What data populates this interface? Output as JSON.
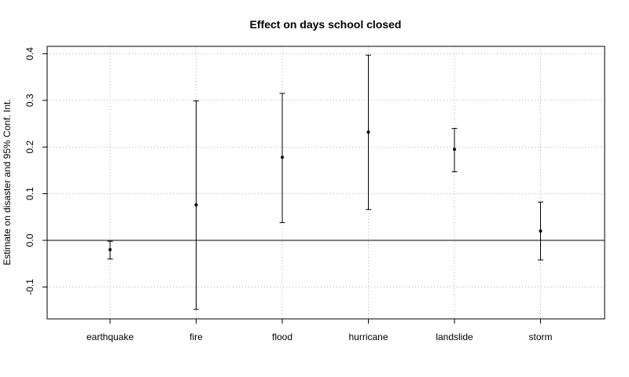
{
  "chart_data": {
    "type": "errorbar",
    "title": "Effect on days school closed",
    "xlabel": "",
    "ylabel": "Estimate on disaster and 95% Conf. Int.",
    "categories": [
      "earthquake",
      "fire",
      "flood",
      "hurricane",
      "landslide",
      "storm"
    ],
    "series": [
      {
        "estimates": [
          -0.02,
          0.076,
          0.178,
          0.232,
          0.195,
          0.02
        ],
        "ci_lower": [
          -0.04,
          -0.148,
          0.038,
          0.066,
          0.147,
          -0.042
        ],
        "ci_upper": [
          -0.002,
          0.299,
          0.315,
          0.397,
          0.24,
          0.082
        ]
      }
    ],
    "ylim": [
      -0.17,
      0.42
    ],
    "yticks": [
      -0.1,
      0.0,
      0.1,
      0.2,
      0.3,
      0.4
    ],
    "ytick_labels": [
      "-0.1",
      "0.0",
      "0.1",
      "0.2",
      "0.3",
      "0.4"
    ],
    "reference_line": 0,
    "grid": true,
    "grid_style": "dotted",
    "colors": {
      "marks": "#000000",
      "grid": "#b0b0b0",
      "frame": "#000000"
    }
  }
}
